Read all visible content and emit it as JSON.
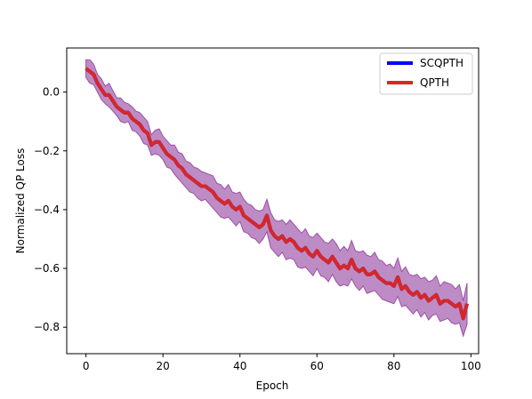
{
  "chart_data": {
    "type": "line",
    "title": "",
    "xlabel": "Epoch",
    "ylabel": "Normalized QP Loss",
    "xlim": [
      -5,
      102
    ],
    "ylim": [
      -0.89,
      0.15
    ],
    "x_ticks": [
      0,
      20,
      40,
      60,
      80,
      100
    ],
    "y_ticks": [
      0.0,
      -0.2,
      -0.4,
      -0.6,
      -0.8
    ],
    "x_tick_labels": [
      "0",
      "20",
      "40",
      "60",
      "80",
      "100"
    ],
    "y_tick_labels": [
      "0.0",
      "−0.2",
      "−0.4",
      "−0.6",
      "−0.8"
    ],
    "grid": false,
    "legend_position": "top-right",
    "series": [
      {
        "name": "SCQPTH",
        "color": "#0000ff",
        "x": [
          0,
          1,
          2,
          3,
          4,
          5,
          6,
          7,
          8,
          9,
          10,
          11,
          12,
          13,
          14,
          15,
          16,
          17,
          18,
          19,
          20,
          21,
          22,
          23,
          24,
          25,
          26,
          27,
          28,
          29,
          30,
          31,
          32,
          33,
          34,
          35,
          36,
          37,
          38,
          39,
          40,
          41,
          42,
          43,
          44,
          45,
          46,
          47,
          48,
          49,
          50,
          51,
          52,
          53,
          54,
          55,
          56,
          57,
          58,
          59,
          60,
          61,
          62,
          63,
          64,
          65,
          66,
          67,
          68,
          69,
          70,
          71,
          72,
          73,
          74,
          75,
          76,
          77,
          78,
          79,
          80,
          81,
          82,
          83,
          84,
          85,
          86,
          87,
          88,
          89,
          90,
          91,
          92,
          93,
          94,
          95,
          96,
          97,
          98,
          99
        ],
        "y": [
          0.08,
          0.07,
          0.06,
          0.03,
          0.01,
          -0.01,
          -0.01,
          -0.03,
          -0.05,
          -0.06,
          -0.07,
          -0.07,
          -0.09,
          -0.1,
          -0.11,
          -0.13,
          -0.14,
          -0.18,
          -0.17,
          -0.17,
          -0.19,
          -0.21,
          -0.22,
          -0.23,
          -0.25,
          -0.26,
          -0.28,
          -0.29,
          -0.3,
          -0.31,
          -0.32,
          -0.32,
          -0.33,
          -0.34,
          -0.36,
          -0.37,
          -0.38,
          -0.37,
          -0.39,
          -0.4,
          -0.39,
          -0.42,
          -0.43,
          -0.44,
          -0.45,
          -0.46,
          -0.45,
          -0.42,
          -0.47,
          -0.49,
          -0.5,
          -0.49,
          -0.51,
          -0.5,
          -0.51,
          -0.53,
          -0.54,
          -0.53,
          -0.55,
          -0.56,
          -0.54,
          -0.56,
          -0.57,
          -0.58,
          -0.56,
          -0.58,
          -0.6,
          -0.59,
          -0.6,
          -0.57,
          -0.6,
          -0.61,
          -0.6,
          -0.62,
          -0.62,
          -0.61,
          -0.63,
          -0.64,
          -0.65,
          -0.65,
          -0.66,
          -0.63,
          -0.67,
          -0.66,
          -0.68,
          -0.69,
          -0.68,
          -0.7,
          -0.69,
          -0.71,
          -0.7,
          -0.69,
          -0.72,
          -0.71,
          -0.71,
          -0.72,
          -0.73,
          -0.72,
          -0.77,
          -0.72
        ]
      },
      {
        "name": "QPTH",
        "color": "#d62728",
        "band_color": "#9b4fa6",
        "x": [
          0,
          1,
          2,
          3,
          4,
          5,
          6,
          7,
          8,
          9,
          10,
          11,
          12,
          13,
          14,
          15,
          16,
          17,
          18,
          19,
          20,
          21,
          22,
          23,
          24,
          25,
          26,
          27,
          28,
          29,
          30,
          31,
          32,
          33,
          34,
          35,
          36,
          37,
          38,
          39,
          40,
          41,
          42,
          43,
          44,
          45,
          46,
          47,
          48,
          49,
          50,
          51,
          52,
          53,
          54,
          55,
          56,
          57,
          58,
          59,
          60,
          61,
          62,
          63,
          64,
          65,
          66,
          67,
          68,
          69,
          70,
          71,
          72,
          73,
          74,
          75,
          76,
          77,
          78,
          79,
          80,
          81,
          82,
          83,
          84,
          85,
          86,
          87,
          88,
          89,
          90,
          91,
          92,
          93,
          94,
          95,
          96,
          97,
          98,
          99
        ],
        "y": [
          0.08,
          0.07,
          0.06,
          0.03,
          0.01,
          -0.01,
          -0.01,
          -0.03,
          -0.05,
          -0.06,
          -0.07,
          -0.07,
          -0.09,
          -0.1,
          -0.11,
          -0.13,
          -0.14,
          -0.18,
          -0.17,
          -0.17,
          -0.19,
          -0.21,
          -0.22,
          -0.23,
          -0.25,
          -0.26,
          -0.28,
          -0.29,
          -0.3,
          -0.31,
          -0.32,
          -0.32,
          -0.33,
          -0.34,
          -0.36,
          -0.37,
          -0.38,
          -0.37,
          -0.39,
          -0.4,
          -0.39,
          -0.42,
          -0.43,
          -0.44,
          -0.45,
          -0.46,
          -0.45,
          -0.42,
          -0.47,
          -0.49,
          -0.5,
          -0.49,
          -0.51,
          -0.5,
          -0.51,
          -0.53,
          -0.54,
          -0.53,
          -0.55,
          -0.56,
          -0.54,
          -0.56,
          -0.57,
          -0.58,
          -0.56,
          -0.58,
          -0.6,
          -0.59,
          -0.6,
          -0.57,
          -0.6,
          -0.61,
          -0.6,
          -0.62,
          -0.62,
          -0.61,
          -0.63,
          -0.64,
          -0.65,
          -0.65,
          -0.66,
          -0.63,
          -0.67,
          -0.66,
          -0.68,
          -0.69,
          -0.68,
          -0.7,
          -0.69,
          -0.71,
          -0.7,
          -0.69,
          -0.72,
          -0.71,
          -0.71,
          -0.72,
          -0.73,
          -0.72,
          -0.77,
          -0.72
        ],
        "band_width": [
          0.03,
          0.04,
          0.035,
          0.03,
          0.035,
          0.03,
          0.04,
          0.035,
          0.03,
          0.04,
          0.035,
          0.03,
          0.04,
          0.035,
          0.04,
          0.045,
          0.04,
          0.035,
          0.04,
          0.045,
          0.04,
          0.045,
          0.04,
          0.05,
          0.045,
          0.05,
          0.045,
          0.05,
          0.045,
          0.05,
          0.05,
          0.045,
          0.05,
          0.055,
          0.05,
          0.055,
          0.05,
          0.055,
          0.05,
          0.055,
          0.05,
          0.055,
          0.05,
          0.055,
          0.05,
          0.055,
          0.05,
          0.055,
          0.06,
          0.055,
          0.06,
          0.055,
          0.06,
          0.065,
          0.06,
          0.065,
          0.06,
          0.065,
          0.06,
          0.065,
          0.06,
          0.065,
          0.06,
          0.065,
          0.06,
          0.065,
          0.06,
          0.065,
          0.06,
          0.065,
          0.06,
          0.065,
          0.06,
          0.065,
          0.06,
          0.065,
          0.06,
          0.065,
          0.06,
          0.065,
          0.06,
          0.065,
          0.06,
          0.065,
          0.06,
          0.065,
          0.06,
          0.065,
          0.06,
          0.065,
          0.06,
          0.065,
          0.06,
          0.065,
          0.06,
          0.065,
          0.06,
          0.065,
          0.06,
          0.07
        ]
      }
    ]
  }
}
